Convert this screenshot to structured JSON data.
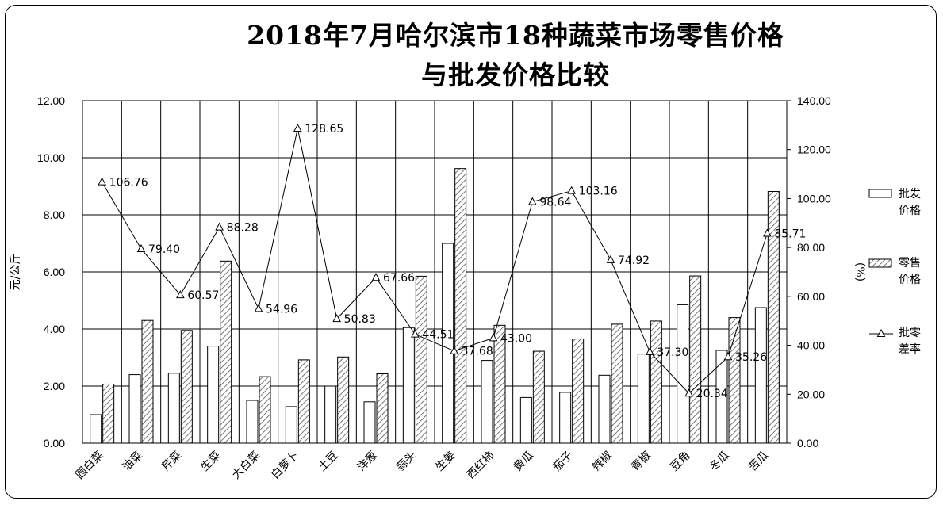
{
  "chart_data": {
    "type": "bar",
    "title_line1": "2018年7月哈尔滨市18种蔬菜市场零售价格",
    "title_line2": "与批发价格比较",
    "ylabel": "元/公斤",
    "y2label": "(%)",
    "ylim": [
      0,
      12
    ],
    "y2lim": [
      0,
      140
    ],
    "yticks": [
      "0.00",
      "2.00",
      "4.00",
      "6.00",
      "8.00",
      "10.00",
      "12.00"
    ],
    "y2ticks": [
      "0.00",
      "20.00",
      "40.00",
      "60.00",
      "80.00",
      "100.00",
      "120.00",
      "140.00"
    ],
    "grid": "horizontal and vertical",
    "legend_position": "right",
    "categories": [
      "圆白菜",
      "油菜",
      "芹菜",
      "生菜",
      "大白菜",
      "白萝卜",
      "土豆",
      "洋葱",
      "蒜头",
      "生姜",
      "西红柿",
      "黄瓜",
      "茄子",
      "辣椒",
      "青椒",
      "豆角",
      "冬瓜",
      "苦瓜"
    ],
    "series": [
      {
        "name_line1": "批发",
        "name_line2": "价格",
        "type": "bar",
        "axis": "left",
        "fill": "#ffffff",
        "values": [
          1.0,
          2.4,
          2.45,
          3.4,
          1.5,
          1.28,
          2.0,
          1.45,
          4.05,
          7.0,
          2.9,
          1.6,
          1.78,
          2.38,
          3.12,
          4.85,
          3.25,
          4.75
        ]
      },
      {
        "name_line1": "零售",
        "name_line2": "价格",
        "type": "bar",
        "axis": "left",
        "fill": "hatch",
        "values": [
          2.07,
          4.3,
          3.95,
          6.38,
          2.33,
          2.92,
          3.02,
          2.43,
          5.85,
          9.62,
          4.13,
          3.22,
          3.65,
          4.17,
          4.28,
          5.86,
          4.4,
          8.82
        ]
      },
      {
        "name_line1": "批零",
        "name_line2": "差率",
        "type": "line",
        "axis": "right",
        "marker": "triangle",
        "values": [
          106.76,
          79.4,
          60.57,
          88.28,
          54.96,
          128.65,
          50.83,
          67.66,
          44.51,
          37.68,
          43.0,
          98.64,
          103.16,
          74.92,
          37.3,
          20.34,
          35.26,
          85.71
        ],
        "labels": [
          "106.76",
          "79.40",
          "60.57",
          "88.28",
          "54.96",
          "128.65",
          "50.83",
          "67.66",
          "44.51",
          "37.68",
          "43.00",
          "98.64",
          "103.16",
          "74.92",
          "37.30",
          "20.34",
          "35.26",
          "85.71"
        ]
      }
    ]
  }
}
